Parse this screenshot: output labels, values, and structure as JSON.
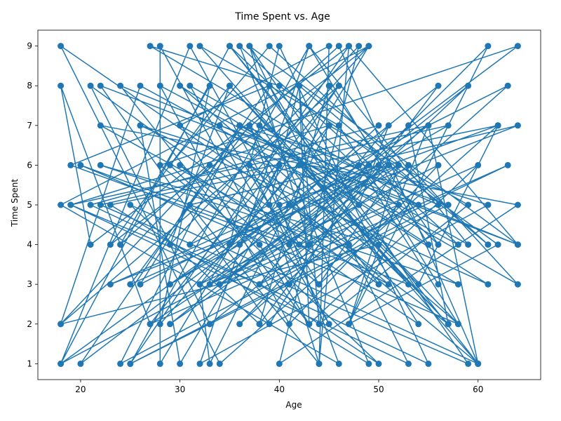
{
  "chart_data": {
    "type": "line",
    "title": "Time Spent vs. Age",
    "xlabel": "Age",
    "ylabel": "Time Spent",
    "xlim": [
      15.7,
      66.3
    ],
    "ylim": [
      0.6,
      9.4
    ],
    "x_ticks": [
      20,
      30,
      40,
      50,
      60
    ],
    "y_ticks": [
      1,
      2,
      3,
      4,
      5,
      6,
      7,
      8,
      9
    ],
    "grid": false,
    "legend": "none",
    "markers": "circle",
    "series": [
      {
        "color": "#1f77b4",
        "x": [
          56,
          46,
          32,
          60,
          25,
          38,
          56,
          36,
          40,
          28,
          28,
          41,
          53,
          57,
          41,
          20,
          39,
          19,
          41,
          61,
          47,
          55,
          19,
          38,
          50,
          29,
          39,
          61,
          42,
          44,
          59,
          45,
          33,
          32,
          64,
          28,
          38,
          43,
          42,
          39,
          44,
          45,
          30,
          58,
          22,
          50,
          18,
          26,
          48,
          35,
          60,
          55,
          34,
          51,
          36,
          63,
          31,
          49,
          18,
          46,
          37,
          25,
          52,
          47,
          62,
          40,
          27,
          54,
          24,
          36,
          64,
          53,
          33,
          21,
          43,
          37,
          59,
          22,
          57,
          29,
          48,
          58,
          35,
          23,
          49,
          30,
          26,
          52,
          34,
          51,
          27,
          18,
          21,
          47,
          44,
          31,
          64,
          23,
          50,
          38,
          45,
          56,
          35,
          18,
          40,
          62,
          54,
          42,
          28,
          33,
          24,
          46,
          60,
          41,
          37,
          53,
          20,
          58,
          30,
          55,
          43,
          32,
          61,
          36,
          26,
          49,
          39,
          22,
          64,
          47,
          25,
          57,
          34,
          44,
          52,
          29,
          59,
          42,
          31,
          18,
          48,
          51,
          38,
          63,
          27,
          46,
          35,
          40,
          55,
          21,
          50,
          33,
          60,
          43,
          24,
          64,
          37,
          53,
          19,
          45,
          32,
          56,
          41,
          28,
          58,
          36,
          49,
          23,
          62,
          44,
          30,
          54,
          39,
          47,
          18,
          34,
          52,
          26,
          61,
          42,
          57,
          35,
          29,
          48,
          40,
          64,
          22,
          51,
          37,
          45,
          31,
          59,
          43,
          25,
          56,
          38,
          50,
          33,
          18,
          46
        ],
        "y": [
          3,
          7,
          9,
          1,
          5,
          2,
          8,
          4,
          6,
          1,
          9,
          3,
          7,
          2,
          5,
          1,
          8,
          6,
          4,
          9,
          2,
          7,
          5,
          3,
          1,
          6,
          9,
          4,
          8,
          2,
          5,
          7,
          1,
          3,
          9,
          6,
          4,
          2,
          8,
          5,
          1,
          9,
          7,
          3,
          6,
          4,
          2,
          8,
          5,
          9,
          1,
          7,
          3,
          6,
          2,
          8,
          4,
          9,
          5,
          1,
          7,
          3,
          6,
          2,
          4,
          8,
          9,
          5,
          1,
          7,
          3,
          6,
          2,
          8,
          4,
          9,
          1,
          5,
          7,
          3,
          6,
          2,
          8,
          4,
          9,
          1,
          7,
          5,
          3,
          6,
          2,
          8,
          4,
          9,
          1,
          5,
          7,
          3,
          6,
          2,
          8,
          4,
          9,
          1,
          5,
          7,
          3,
          6,
          2,
          8,
          4,
          9,
          1,
          5,
          7,
          3,
          6,
          2,
          8,
          4,
          9,
          1,
          5,
          7,
          3,
          6,
          2,
          8,
          4,
          9,
          1,
          5,
          7,
          3,
          6,
          2,
          8,
          4,
          9,
          1,
          5,
          7,
          3,
          6,
          2,
          8,
          4,
          9,
          1,
          5,
          7,
          3,
          6,
          2,
          8,
          4,
          9,
          1,
          5,
          7,
          3,
          6,
          2,
          8,
          4,
          9,
          1,
          5,
          7,
          3,
          6,
          2,
          8,
          4,
          9,
          1,
          5,
          7,
          3,
          6,
          2,
          8,
          4,
          9,
          1,
          5,
          7,
          3,
          6,
          2,
          8,
          4,
          9,
          1,
          5,
          7,
          3,
          6,
          2,
          8
        ]
      }
    ]
  }
}
